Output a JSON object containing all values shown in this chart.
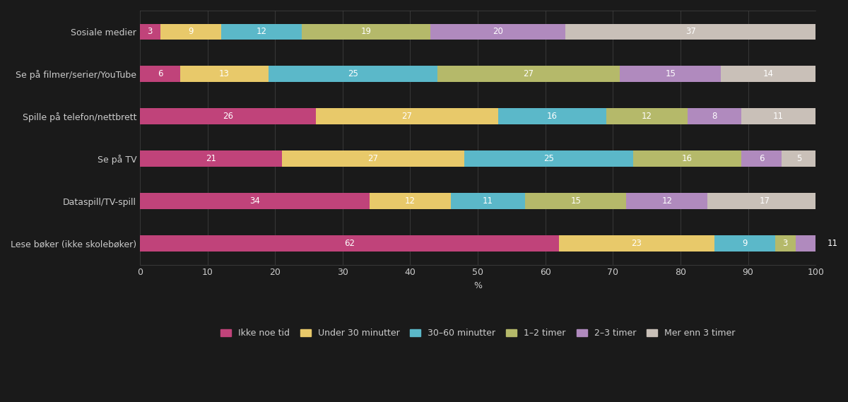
{
  "categories": [
    "Sosiale medier",
    "Se på filmer/serier/YouTube",
    "Spille på telefon/nettbrett",
    "Se på TV",
    "Dataspill/TV-spill",
    "Lese bøker (ikke skolebøker)"
  ],
  "series": [
    {
      "label": "Ikke noe tid",
      "color": "#c0437a",
      "values": [
        3,
        6,
        26,
        21,
        34,
        62
      ]
    },
    {
      "label": "Under 30 minutter",
      "color": "#e8c96a",
      "values": [
        9,
        13,
        27,
        27,
        12,
        23
      ]
    },
    {
      "label": "30–60 minutter",
      "color": "#5bb8c9",
      "values": [
        12,
        25,
        16,
        25,
        11,
        9
      ]
    },
    {
      "label": "1–2 timer",
      "color": "#b5b96a",
      "values": [
        19,
        27,
        12,
        16,
        15,
        3
      ]
    },
    {
      "label": "2–3 timer",
      "color": "#b08abe",
      "values": [
        20,
        15,
        8,
        6,
        12,
        11
      ]
    },
    {
      "label": "Mer enn 3 timer",
      "color": "#c9c0b8",
      "values": [
        37,
        14,
        11,
        5,
        17,
        0
      ]
    }
  ],
  "xlabel": "%",
  "xlim": [
    0,
    100
  ],
  "xticks": [
    0,
    10,
    20,
    30,
    40,
    50,
    60,
    70,
    80,
    90,
    100
  ],
  "background_color": "#1a1a1a",
  "plot_bg_color": "#1a1a1a",
  "bar_height": 0.38,
  "text_color": "#cccccc",
  "grid_color": "#444444",
  "fontsize_labels": 9,
  "fontsize_ticks": 9,
  "fontsize_values": 8.5,
  "fontsize_xlabel": 9,
  "fontsize_legend": 9
}
